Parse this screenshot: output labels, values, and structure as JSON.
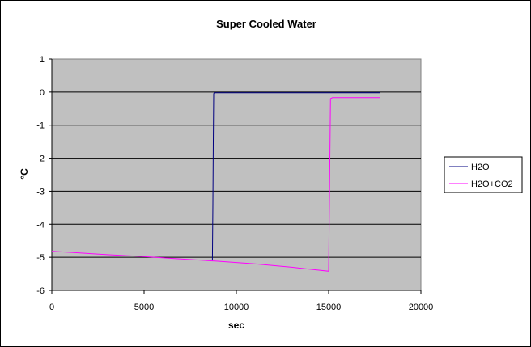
{
  "chart_data": {
    "type": "line",
    "title": "Super Cooled Water",
    "xlabel": "sec",
    "ylabel": "°C",
    "xlim": [
      0,
      20000
    ],
    "ylim": [
      -6,
      1
    ],
    "x_ticks": [
      0,
      5000,
      10000,
      15000,
      20000
    ],
    "y_ticks": [
      1,
      0,
      -1,
      -2,
      -3,
      -4,
      -5,
      -6
    ],
    "grid": "horizontal",
    "legend_position": "right",
    "plot_background": "#c0c0c0",
    "series": [
      {
        "name": "H2O",
        "color": "#000080",
        "x": [
          8700,
          8730,
          8750,
          8770,
          8800,
          12000,
          17800
        ],
        "y": [
          -5.1,
          -3.4,
          -1.5,
          -0.05,
          -0.02,
          -0.02,
          -0.02
        ]
      },
      {
        "name": "H2O+CO2",
        "color": "#ff00ff",
        "x": [
          0,
          1000,
          3000,
          5000,
          7000,
          9000,
          11000,
          13000,
          15000,
          15050,
          15100,
          15200,
          16000,
          17800
        ],
        "y": [
          -4.82,
          -4.85,
          -4.92,
          -4.98,
          -5.05,
          -5.12,
          -5.2,
          -5.3,
          -5.42,
          -3.0,
          -0.2,
          -0.17,
          -0.17,
          -0.17
        ]
      }
    ]
  }
}
